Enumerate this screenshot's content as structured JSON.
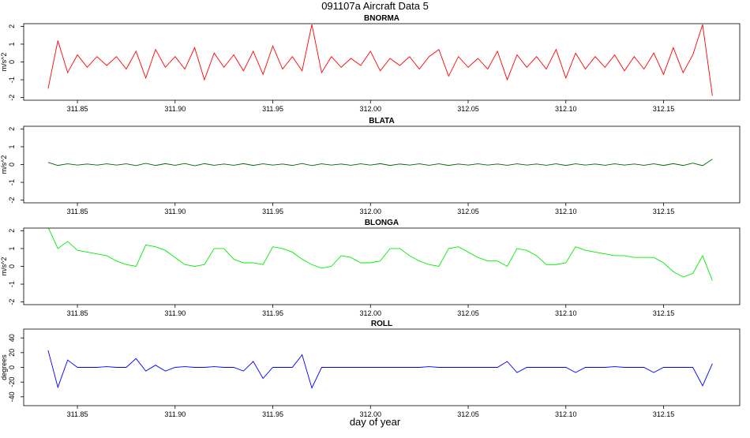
{
  "title": "091107a   Aircraft Data 5",
  "chart_data": [
    {
      "type": "line",
      "title": "BNORMA",
      "ylabel": "m/s^2",
      "color": "#ff0000",
      "xlim": [
        311.8225,
        312.189
      ],
      "ylim": [
        -2.15,
        2.15
      ],
      "yticks": [
        -2,
        -1,
        0,
        1,
        2
      ],
      "xticks": [
        311.85,
        {
          "value": 311.9,
          "label": "311.90"
        },
        311.95,
        {
          "value": 312,
          "label": "312.00"
        },
        312.05,
        {
          "value": 312.1,
          "label": "312.10"
        },
        312.15
      ],
      "x": [
        311.835,
        311.84,
        311.845,
        311.85,
        311.855,
        311.86,
        311.865,
        311.87,
        311.875,
        311.88,
        311.885,
        311.89,
        311.895,
        311.9,
        311.905,
        311.91,
        311.915,
        311.92,
        311.925,
        311.93,
        311.935,
        311.94,
        311.945,
        311.95,
        311.955,
        311.96,
        311.965,
        311.97,
        311.975,
        311.98,
        311.985,
        311.99,
        311.995,
        312,
        312.005,
        312.01,
        312.015,
        312.02,
        312.025,
        312.03,
        312.035,
        312.04,
        312.045,
        312.05,
        312.055,
        312.06,
        312.065,
        312.07,
        312.075,
        312.08,
        312.085,
        312.09,
        312.095,
        312.1,
        312.105,
        312.11,
        312.115,
        312.12,
        312.125,
        312.13,
        312.135,
        312.14,
        312.145,
        312.15,
        312.155,
        312.16,
        312.165,
        312.17,
        312.175
      ],
      "values": [
        -1.5,
        1.2,
        -0.6,
        0.4,
        -0.3,
        0.3,
        -0.2,
        0.3,
        -0.4,
        0.6,
        -0.9,
        0.7,
        -0.3,
        0.3,
        -0.4,
        0.8,
        -1.0,
        0.5,
        -0.3,
        0.4,
        -0.5,
        0.6,
        -0.7,
        0.9,
        -0.4,
        0.3,
        -0.5,
        2.1,
        -0.6,
        0.3,
        -0.3,
        0.2,
        -0.2,
        0.6,
        -0.5,
        0.2,
        -0.2,
        0.3,
        -0.4,
        0.3,
        0.7,
        -0.8,
        0.3,
        -0.3,
        0.2,
        -0.4,
        0.6,
        -1.0,
        0.4,
        -0.3,
        0.3,
        -0.4,
        0.7,
        -0.9,
        0.5,
        -0.4,
        0.3,
        -0.3,
        0.4,
        -0.5,
        0.3,
        -0.4,
        0.5,
        -0.7,
        0.8,
        -0.6,
        0.4,
        2.1,
        -1.9
      ]
    },
    {
      "type": "line",
      "title": "BLATA",
      "ylabel": "m/s^2",
      "color": "#006400",
      "xlim": [
        311.8225,
        312.189
      ],
      "ylim": [
        -2.15,
        2.15
      ],
      "yticks": [
        -2,
        -1,
        0,
        1,
        2
      ],
      "xticks": [
        311.85,
        {
          "value": 311.9,
          "label": "311.90"
        },
        311.95,
        {
          "value": 312,
          "label": "312.00"
        },
        312.05,
        {
          "value": 312.1,
          "label": "312.10"
        },
        312.15
      ],
      "x": [
        311.835,
        311.84,
        311.845,
        311.85,
        311.855,
        311.86,
        311.865,
        311.87,
        311.875,
        311.88,
        311.885,
        311.89,
        311.895,
        311.9,
        311.905,
        311.91,
        311.915,
        311.92,
        311.925,
        311.93,
        311.935,
        311.94,
        311.945,
        311.95,
        311.955,
        311.96,
        311.965,
        311.97,
        311.975,
        311.98,
        311.985,
        311.99,
        311.995,
        312,
        312.005,
        312.01,
        312.015,
        312.02,
        312.025,
        312.03,
        312.035,
        312.04,
        312.045,
        312.05,
        312.055,
        312.06,
        312.065,
        312.07,
        312.075,
        312.08,
        312.085,
        312.09,
        312.095,
        312.1,
        312.105,
        312.11,
        312.115,
        312.12,
        312.125,
        312.13,
        312.135,
        312.14,
        312.145,
        312.15,
        312.155,
        312.16,
        312.165,
        312.17,
        312.175
      ],
      "values": [
        0.12,
        -0.05,
        0.04,
        -0.03,
        0.03,
        -0.03,
        0.04,
        -0.03,
        0.04,
        -0.06,
        0.07,
        -0.05,
        0.05,
        -0.04,
        0.06,
        -0.07,
        0.05,
        -0.04,
        0.03,
        -0.04,
        0.05,
        -0.05,
        0.04,
        -0.03,
        0.03,
        -0.05,
        0.06,
        -0.06,
        0.04,
        -0.03,
        0.03,
        -0.04,
        0.04,
        -0.03,
        0.05,
        -0.05,
        0.03,
        -0.03,
        0.04,
        -0.04,
        0.04,
        -0.05,
        0.03,
        -0.03,
        0.04,
        -0.03,
        0.03,
        -0.04,
        0.04,
        -0.03,
        0.03,
        -0.04,
        0.04,
        -0.05,
        0.04,
        -0.03,
        0.03,
        -0.04,
        0.04,
        -0.03,
        0.03,
        -0.04,
        0.04,
        -0.05,
        0.05,
        -0.05,
        0.08,
        -0.06,
        0.3
      ]
    },
    {
      "type": "line",
      "title": "BLONGA",
      "ylabel": "m/s^2",
      "color": "#00ee00",
      "xlim": [
        311.8225,
        312.189
      ],
      "ylim": [
        -2.15,
        2.15
      ],
      "yticks": [
        -2,
        -1,
        0,
        1,
        2
      ],
      "xticks": [
        311.85,
        {
          "value": 311.9,
          "label": "311.90"
        },
        311.95,
        {
          "value": 312,
          "label": "312.00"
        },
        312.05,
        {
          "value": 312.1,
          "label": "312.10"
        },
        312.15
      ],
      "x": [
        311.835,
        311.84,
        311.845,
        311.85,
        311.855,
        311.86,
        311.865,
        311.87,
        311.875,
        311.88,
        311.885,
        311.89,
        311.895,
        311.9,
        311.905,
        311.91,
        311.915,
        311.92,
        311.925,
        311.93,
        311.935,
        311.94,
        311.945,
        311.95,
        311.955,
        311.96,
        311.965,
        311.97,
        311.975,
        311.98,
        311.985,
        311.99,
        311.995,
        312,
        312.005,
        312.01,
        312.015,
        312.02,
        312.025,
        312.03,
        312.035,
        312.04,
        312.045,
        312.05,
        312.055,
        312.06,
        312.065,
        312.07,
        312.075,
        312.08,
        312.085,
        312.09,
        312.095,
        312.1,
        312.105,
        312.11,
        312.115,
        312.12,
        312.125,
        312.13,
        312.135,
        312.14,
        312.145,
        312.15,
        312.155,
        312.16,
        312.165,
        312.17,
        312.175
      ],
      "values": [
        2.2,
        1.0,
        1.4,
        0.9,
        0.8,
        0.7,
        0.6,
        0.3,
        0.1,
        0.0,
        1.2,
        1.1,
        0.9,
        0.5,
        0.1,
        0.0,
        0.1,
        1.0,
        1.0,
        0.4,
        0.2,
        0.2,
        0.1,
        1.1,
        1.0,
        0.8,
        0.4,
        0.1,
        -0.1,
        0.0,
        0.6,
        0.5,
        0.2,
        0.2,
        0.3,
        1.0,
        1.0,
        0.6,
        0.3,
        0.1,
        0.0,
        1.0,
        1.1,
        0.8,
        0.5,
        0.3,
        0.3,
        0.0,
        1.0,
        0.9,
        0.6,
        0.1,
        0.1,
        0.2,
        1.1,
        0.9,
        0.8,
        0.7,
        0.6,
        0.6,
        0.5,
        0.5,
        0.5,
        0.2,
        -0.3,
        -0.6,
        -0.4,
        0.6,
        -0.8
      ]
    },
    {
      "type": "line",
      "title": "ROLL",
      "ylabel": "degrees",
      "xlabel": "day of year",
      "color": "#0000ff",
      "xlim": [
        311.8225,
        312.189
      ],
      "ylim": [
        -52,
        52
      ],
      "yticks": [
        -40,
        -20,
        0,
        20,
        40
      ],
      "xticks": [
        311.85,
        {
          "value": 311.9,
          "label": "311.90"
        },
        311.95,
        {
          "value": 312,
          "label": "312.00"
        },
        312.05,
        {
          "value": 312.1,
          "label": "312.10"
        },
        312.15
      ],
      "x": [
        311.835,
        311.84,
        311.845,
        311.85,
        311.855,
        311.86,
        311.865,
        311.87,
        311.875,
        311.88,
        311.885,
        311.89,
        311.895,
        311.9,
        311.905,
        311.91,
        311.915,
        311.92,
        311.925,
        311.93,
        311.935,
        311.94,
        311.945,
        311.95,
        311.955,
        311.96,
        311.965,
        311.97,
        311.975,
        311.98,
        311.985,
        311.99,
        311.995,
        312,
        312.005,
        312.01,
        312.015,
        312.02,
        312.025,
        312.03,
        312.035,
        312.04,
        312.045,
        312.05,
        312.055,
        312.06,
        312.065,
        312.07,
        312.075,
        312.08,
        312.085,
        312.09,
        312.095,
        312.1,
        312.105,
        312.11,
        312.115,
        312.12,
        312.125,
        312.13,
        312.135,
        312.14,
        312.145,
        312.15,
        312.155,
        312.16,
        312.165,
        312.17,
        312.175
      ],
      "values": [
        23,
        -27,
        10,
        0,
        0,
        0,
        1,
        0,
        0,
        12,
        -5,
        3,
        -5,
        0,
        1,
        0,
        0,
        1,
        0,
        0,
        -5,
        8,
        -15,
        0,
        0,
        0,
        17,
        -28,
        0,
        0,
        0,
        0,
        0,
        0,
        0,
        0,
        0,
        0,
        0,
        1,
        0,
        0,
        0,
        0,
        0,
        0,
        0,
        8,
        -7,
        0,
        0,
        0,
        0,
        0,
        -7,
        0,
        0,
        0,
        1,
        0,
        0,
        0,
        -7,
        0,
        0,
        0,
        0,
        -25,
        5
      ]
    }
  ]
}
